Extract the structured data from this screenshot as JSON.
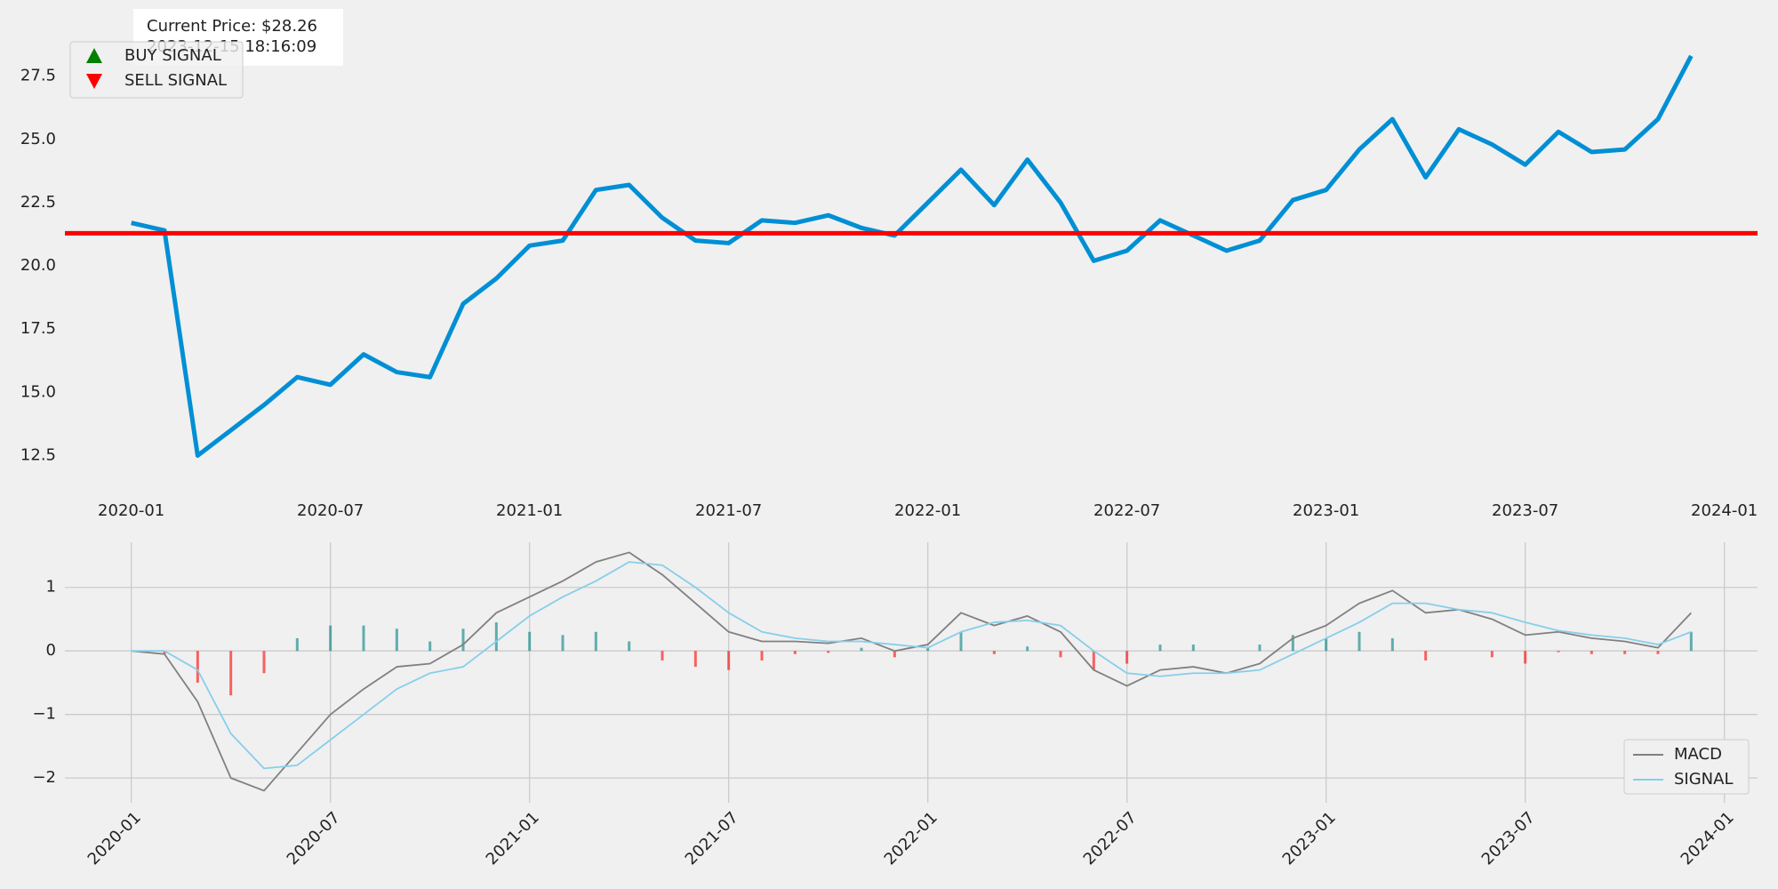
{
  "chart_data": [
    {
      "type": "line",
      "x": [
        "2020-01",
        "2020-02",
        "2020-03",
        "2020-04",
        "2020-05",
        "2020-06",
        "2020-07",
        "2020-08",
        "2020-09",
        "2020-10",
        "2020-11",
        "2020-12",
        "2021-01",
        "2021-02",
        "2021-03",
        "2021-04",
        "2021-05",
        "2021-06",
        "2021-07",
        "2021-08",
        "2021-09",
        "2021-10",
        "2021-11",
        "2021-12",
        "2022-01",
        "2022-02",
        "2022-03",
        "2022-04",
        "2022-05",
        "2022-06",
        "2022-07",
        "2022-08",
        "2022-09",
        "2022-10",
        "2022-11",
        "2022-12",
        "2023-01",
        "2023-02",
        "2023-03",
        "2023-04",
        "2023-05",
        "2023-06",
        "2023-07",
        "2023-08",
        "2023-09",
        "2023-10",
        "2023-11",
        "2023-12"
      ],
      "values": [
        21.7,
        21.4,
        12.5,
        13.5,
        14.5,
        15.6,
        15.3,
        16.5,
        15.8,
        15.6,
        18.5,
        19.5,
        20.8,
        21.0,
        23.0,
        23.2,
        21.9,
        21.0,
        20.9,
        21.8,
        21.7,
        22.0,
        21.5,
        21.2,
        22.5,
        23.8,
        22.4,
        24.2,
        22.5,
        20.2,
        20.6,
        21.8,
        21.2,
        20.6,
        21.0,
        22.6,
        23.0,
        24.6,
        25.8,
        23.5,
        25.4,
        24.8,
        24.0,
        25.3,
        24.5,
        24.6,
        25.8,
        28.3
      ],
      "color": "#008fd5",
      "hline": {
        "value": 21.29,
        "color": "#ff0000"
      },
      "annotation": [
        "Current Price: $28.26",
        "2023-12-15 18:16:09"
      ],
      "legend": [
        {
          "name": "BUY SIGNAL",
          "color": "#008000",
          "marker": "up"
        },
        {
          "name": "SELL SIGNAL",
          "color": "#ff0000",
          "marker": "down"
        }
      ],
      "xlim": [
        "2019-11",
        "2024-02"
      ],
      "xticks": [
        "2020-01",
        "2020-07",
        "2021-01",
        "2021-07",
        "2022-01",
        "2022-07",
        "2023-01",
        "2023-07",
        "2024-01"
      ],
      "ylim": [
        11.25,
        30.3
      ],
      "yticks": [
        12.5,
        {
          "value": 15,
          "label": "15.0"
        },
        17.5,
        {
          "value": 20,
          "label": "20.0"
        },
        22.5,
        {
          "value": 25,
          "label": "25.0"
        },
        27.5
      ],
      "grid": false
    },
    {
      "type": "line",
      "x": [
        "2020-01",
        "2020-02",
        "2020-03",
        "2020-04",
        "2020-05",
        "2020-06",
        "2020-07",
        "2020-08",
        "2020-09",
        "2020-10",
        "2020-11",
        "2020-12",
        "2021-01",
        "2021-02",
        "2021-03",
        "2021-04",
        "2021-05",
        "2021-06",
        "2021-07",
        "2021-08",
        "2021-09",
        "2021-10",
        "2021-11",
        "2021-12",
        "2022-01",
        "2022-02",
        "2022-03",
        "2022-04",
        "2022-05",
        "2022-06",
        "2022-07",
        "2022-08",
        "2022-09",
        "2022-10",
        "2022-11",
        "2022-12",
        "2023-01",
        "2023-02",
        "2023-03",
        "2023-04",
        "2023-05",
        "2023-06",
        "2023-07",
        "2023-08",
        "2023-09",
        "2023-10",
        "2023-11",
        "2023-12"
      ],
      "series": [
        {
          "name": "MACD",
          "color": "#808080",
          "values": [
            0,
            -0.05,
            -0.8,
            -2.0,
            -2.2,
            -1.6,
            -1.0,
            -0.6,
            -0.25,
            -0.2,
            0.1,
            0.6,
            0.85,
            1.1,
            1.4,
            1.55,
            1.2,
            0.75,
            0.3,
            0.15,
            0.15,
            0.12,
            0.2,
            0.0,
            0.1,
            0.6,
            0.4,
            0.55,
            0.3,
            -0.3,
            -0.55,
            -0.3,
            -0.25,
            -0.35,
            -0.2,
            0.2,
            0.4,
            0.75,
            0.95,
            0.6,
            0.65,
            0.5,
            0.25,
            0.3,
            0.2,
            0.15,
            0.05,
            0.6
          ]
        },
        {
          "name": "SIGNAL",
          "color": "#87ceeb",
          "values": [
            0,
            0,
            -0.3,
            -1.3,
            -1.85,
            -1.8,
            -1.4,
            -1.0,
            -0.6,
            -0.35,
            -0.25,
            0.15,
            0.55,
            0.85,
            1.1,
            1.4,
            1.35,
            1.0,
            0.6,
            0.3,
            0.2,
            0.15,
            0.15,
            0.1,
            0.05,
            0.3,
            0.45,
            0.48,
            0.4,
            0.0,
            -0.35,
            -0.4,
            -0.35,
            -0.35,
            -0.3,
            -0.05,
            0.2,
            0.45,
            0.75,
            0.75,
            0.65,
            0.6,
            0.45,
            0.32,
            0.25,
            0.2,
            0.1,
            0.3
          ]
        }
      ],
      "histogram": {
        "positive_color": "#008080",
        "negative_color": "#ff0000",
        "values": [
          0,
          -0.05,
          -0.5,
          -0.7,
          -0.35,
          0.2,
          0.4,
          0.4,
          0.35,
          0.15,
          0.35,
          0.45,
          0.3,
          0.25,
          0.3,
          0.15,
          -0.15,
          -0.25,
          -0.3,
          -0.15,
          -0.05,
          -0.03,
          0.05,
          -0.1,
          0.05,
          0.3,
          -0.05,
          0.07,
          -0.1,
          -0.3,
          -0.2,
          0.1,
          0.1,
          0,
          0.1,
          0.25,
          0.2,
          0.3,
          0.2,
          -0.15,
          0,
          -0.1,
          -0.2,
          -0.02,
          -0.05,
          -0.05,
          -0.05,
          0.3
        ]
      },
      "xlim": [
        "2019-11",
        "2024-02"
      ],
      "xticks": [
        "2020-01",
        "2020-07",
        "2021-01",
        "2021-07",
        "2022-01",
        "2022-07",
        "2023-01",
        "2023-07",
        "2024-01"
      ],
      "ylim": [
        -2.39,
        1.71
      ],
      "yticks": [
        {
          "value": -2,
          "label": "−2"
        },
        {
          "value": -1,
          "label": "−1"
        },
        0,
        1
      ],
      "grid": true,
      "legend_corner": "lower right"
    }
  ]
}
